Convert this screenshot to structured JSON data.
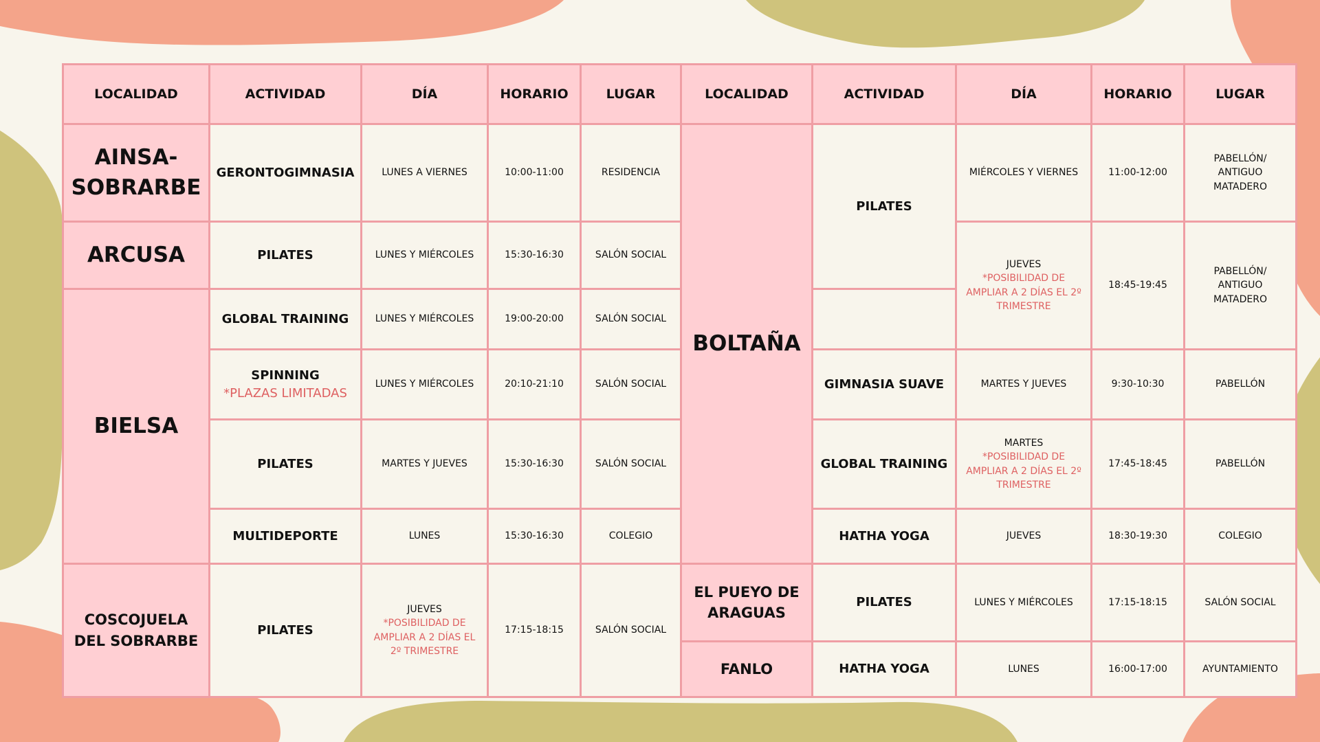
{
  "colors": {
    "background": "#f8f5ec",
    "header_fill": "#ffcfd3",
    "grid_lines": "#ef9ea4",
    "note_text": "#de6061",
    "blob_salmon": "#f4a48a",
    "blob_olive": "#cfc37c"
  },
  "headers": {
    "left": [
      "LOCALIDAD",
      "ACTIVIDAD",
      "DÍA",
      "HORARIO",
      "LUGAR"
    ],
    "right": [
      "LOCALIDAD",
      "ACTIVIDAD",
      "DÍA",
      "HORARIO",
      "LUGAR"
    ]
  },
  "left": {
    "ainsa": {
      "loc": "AINSA-SOBRARBE",
      "rows": [
        {
          "act": "GERONTOGIMNASIA",
          "dia": "LUNES A VIERNES",
          "horario": "10:00-11:00",
          "lugar": "RESIDENCIA"
        }
      ]
    },
    "arcusa": {
      "loc": "ARCUSA",
      "rows": [
        {
          "act": "PILATES",
          "dia": "LUNES Y MIÉRCOLES",
          "horario": "15:30-16:30",
          "lugar": "SALÓN SOCIAL"
        }
      ]
    },
    "bielsa": {
      "loc": "BIELSA",
      "rows": [
        {
          "act": "GLOBAL TRAINING",
          "dia": "LUNES Y MIÉRCOLES",
          "horario": "19:00-20:00",
          "lugar": "SALÓN SOCIAL"
        },
        {
          "act": "SPINNING",
          "act_note": "*PLAZAS LIMITADAS",
          "dia": "LUNES Y MIÉRCOLES",
          "horario": "20:10-21:10",
          "lugar": "SALÓN SOCIAL"
        },
        {
          "act": "PILATES",
          "dia": "MARTES Y JUEVES",
          "horario": "15:30-16:30",
          "lugar": "SALÓN SOCIAL"
        },
        {
          "act": "MULTIDEPORTE",
          "dia": "LUNES",
          "horario": "15:30-16:30",
          "lugar": "COLEGIO"
        }
      ]
    },
    "coscojuela": {
      "loc": "COSCOJUELA DEL SOBRARBE",
      "rows": [
        {
          "act": "PILATES",
          "dia": "JUEVES",
          "dia_note": "*POSIBILIDAD DE AMPLIAR A 2 DÍAS EL 2º TRIMESTRE",
          "horario": "17:15-18:15",
          "lugar": "SALÓN SOCIAL"
        }
      ]
    }
  },
  "right": {
    "boltana": {
      "loc": "BOLTAÑA",
      "rows": [
        {
          "act": "PILATES",
          "dia": "MIÉRCOLES Y VIERNES",
          "horario": "11:00-12:00",
          "lugar": "PABELLÓN/ ANTIGUO MATADERO"
        },
        {
          "dia": "JUEVES",
          "dia_note": "*POSIBILIDAD DE AMPLIAR A 2 DÍAS EL 2º TRIMESTRE",
          "horario": "18:45-19:45",
          "lugar": "PABELLÓN/ ANTIGUO MATADERO"
        },
        {
          "act": "GIMNASIA SUAVE",
          "dia": "MARTES Y JUEVES",
          "horario": "9:30-10:30",
          "lugar": "PABELLÓN"
        },
        {
          "act": "GLOBAL TRAINING",
          "dia": "MARTES",
          "dia_note": "*POSIBILIDAD DE AMPLIAR A 2 DÍAS EL 2º TRIMESTRE",
          "horario": "17:45-18:45",
          "lugar": "PABELLÓN"
        },
        {
          "act": "HATHA YOGA",
          "dia": "JUEVES",
          "horario": "18:30-19:30",
          "lugar": "COLEGIO"
        }
      ]
    },
    "pueyo": {
      "loc": "EL PUEYO DE ARAGUAS",
      "rows": [
        {
          "act": "PILATES",
          "dia": "LUNES Y MIÉRCOLES",
          "horario": "17:15-18:15",
          "lugar": "SALÓN SOCIAL"
        }
      ]
    },
    "fanlo": {
      "loc": "FANLO",
      "rows": [
        {
          "act": "HATHA YOGA",
          "dia": "LUNES",
          "horario": "16:00-17:00",
          "lugar": "AYUNTAMIENTO"
        }
      ]
    }
  }
}
